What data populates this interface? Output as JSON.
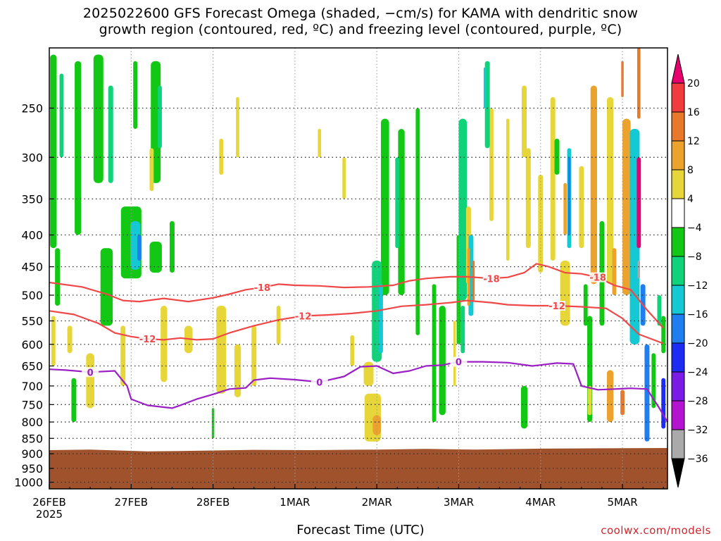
{
  "title": {
    "line1": "2025022600 GFS Forecast Omega (shaded, −cm/s) for KAMA with dendritic snow",
    "line2": "growth region (contoured, red, ºC) and freezing level (contoured, purple, ºC)"
  },
  "credit": "coolwx.com/models",
  "chart_data": {
    "type": "heatmap",
    "xlabel": "Forecast Time (UTC)",
    "ylabel": "",
    "x_ticks": [
      "26FEB",
      "27FEB",
      "28FEB",
      "1MAR",
      "2MAR",
      "3MAR",
      "4MAR",
      "5MAR"
    ],
    "x_sublabel": "2025",
    "x_range_days": [
      0,
      7.55
    ],
    "y_ticks": [
      250,
      300,
      350,
      400,
      450,
      500,
      550,
      600,
      650,
      700,
      750,
      800,
      850,
      900,
      950,
      1000
    ],
    "y_range_hpa": [
      200,
      1025
    ],
    "y_scale": "log",
    "grid": true,
    "terrain_color": "#a0522d",
    "colorbar": {
      "labels": [
        "20",
        "16",
        "12",
        "8",
        "4",
        "−4",
        "−8",
        "−12",
        "−16",
        "−20",
        "−24",
        "−28",
        "−32",
        "−36"
      ],
      "levels": [
        20,
        16,
        12,
        8,
        4,
        -4,
        -8,
        -12,
        -16,
        -20,
        -24,
        -28,
        -32,
        -36
      ],
      "colors": [
        "#e8006e",
        "#f03c3c",
        "#e8782a",
        "#eca32e",
        "#e6d63a",
        "#ffffff",
        "#12c814",
        "#10d27a",
        "#14c8d4",
        "#1f7ef0",
        "#1c2cf2",
        "#7a1ce6",
        "#b414d2",
        "#aaaaaa",
        "#000000"
      ]
    },
    "contours": [
      {
        "label": "-18",
        "color": "#f04848",
        "points": [
          [
            0.0,
            477
          ],
          [
            0.4,
            485
          ],
          [
            0.7,
            498
          ],
          [
            0.9,
            510
          ],
          [
            1.1,
            512
          ],
          [
            1.4,
            506
          ],
          [
            1.7,
            512
          ],
          [
            2.0,
            505
          ],
          [
            2.2,
            498
          ],
          [
            2.4,
            490
          ],
          [
            2.6,
            486
          ],
          [
            2.8,
            480
          ],
          [
            3.0,
            482
          ],
          [
            3.3,
            483
          ],
          [
            3.6,
            486
          ],
          [
            3.9,
            485
          ],
          [
            4.2,
            482
          ],
          [
            4.4,
            474
          ],
          [
            4.6,
            470
          ],
          [
            4.9,
            467
          ],
          [
            5.1,
            467
          ],
          [
            5.4,
            470
          ],
          [
            5.6,
            468
          ],
          [
            5.8,
            460
          ],
          [
            5.95,
            445
          ],
          [
            6.1,
            450
          ],
          [
            6.3,
            460
          ],
          [
            6.5,
            462
          ],
          [
            6.7,
            468
          ],
          [
            6.9,
            482
          ],
          [
            7.1,
            490
          ],
          [
            7.3,
            528
          ],
          [
            7.5,
            565
          ]
        ]
      },
      {
        "label": "-12",
        "color": "#f04848",
        "points": [
          [
            0.0,
            530
          ],
          [
            0.3,
            537
          ],
          [
            0.6,
            555
          ],
          [
            0.8,
            575
          ],
          [
            1.0,
            583
          ],
          [
            1.2,
            588
          ],
          [
            1.4,
            590
          ],
          [
            1.6,
            586
          ],
          [
            1.8,
            590
          ],
          [
            2.0,
            588
          ],
          [
            2.2,
            575
          ],
          [
            2.5,
            560
          ],
          [
            2.8,
            548
          ],
          [
            3.1,
            540
          ],
          [
            3.4,
            538
          ],
          [
            3.7,
            535
          ],
          [
            4.0,
            530
          ],
          [
            4.3,
            521
          ],
          [
            4.6,
            518
          ],
          [
            4.9,
            514
          ],
          [
            5.1,
            510
          ],
          [
            5.4,
            514
          ],
          [
            5.6,
            518
          ],
          [
            5.9,
            520
          ],
          [
            6.2,
            520
          ],
          [
            6.5,
            522
          ],
          [
            6.8,
            525
          ],
          [
            7.0,
            545
          ],
          [
            7.2,
            578
          ],
          [
            7.5,
            598
          ]
        ]
      },
      {
        "label": "0",
        "color": "#9b1fc4",
        "points": [
          [
            0.0,
            658
          ],
          [
            0.2,
            660
          ],
          [
            0.5,
            665
          ],
          [
            0.8,
            662
          ],
          [
            0.95,
            700
          ],
          [
            1.0,
            735
          ],
          [
            1.2,
            752
          ],
          [
            1.5,
            760
          ],
          [
            1.6,
            752
          ],
          [
            1.8,
            735
          ],
          [
            2.0,
            722
          ],
          [
            2.2,
            708
          ],
          [
            2.4,
            705
          ],
          [
            2.5,
            685
          ],
          [
            2.7,
            680
          ],
          [
            3.0,
            684
          ],
          [
            3.3,
            690
          ],
          [
            3.6,
            676
          ],
          [
            3.8,
            652
          ],
          [
            4.0,
            650
          ],
          [
            4.2,
            668
          ],
          [
            4.4,
            662
          ],
          [
            4.6,
            650
          ],
          [
            4.8,
            648
          ],
          [
            5.0,
            640
          ],
          [
            5.3,
            640
          ],
          [
            5.6,
            642
          ],
          [
            5.9,
            650
          ],
          [
            6.2,
            643
          ],
          [
            6.4,
            645
          ],
          [
            6.5,
            700
          ],
          [
            6.7,
            710
          ],
          [
            6.9,
            708
          ],
          [
            7.1,
            706
          ],
          [
            7.3,
            708
          ],
          [
            7.45,
            760
          ],
          [
            7.55,
            800
          ]
        ]
      }
    ]
  }
}
